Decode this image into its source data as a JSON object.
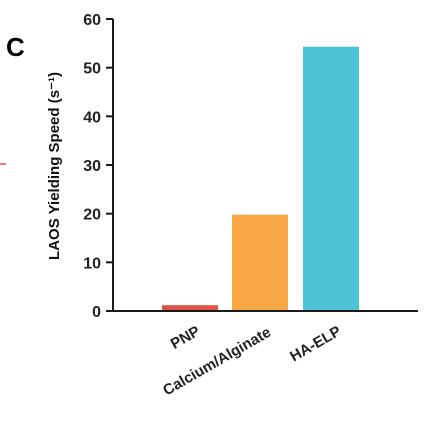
{
  "panel_label": "C",
  "chart_data": {
    "type": "bar",
    "title": "",
    "xlabel": "",
    "ylabel": "LAOS Yielding Speed (s⁻¹)",
    "ylim": [
      0,
      60
    ],
    "yticks": [
      0,
      10,
      20,
      30,
      40,
      50,
      60
    ],
    "grid": false,
    "categories": [
      "PNP",
      "Calcium/Alginate",
      "HA-ELP"
    ],
    "values": [
      1.2,
      19.8,
      54.3
    ],
    "colors": [
      "#e0524a",
      "#f7a845",
      "#4cc3d6"
    ]
  }
}
